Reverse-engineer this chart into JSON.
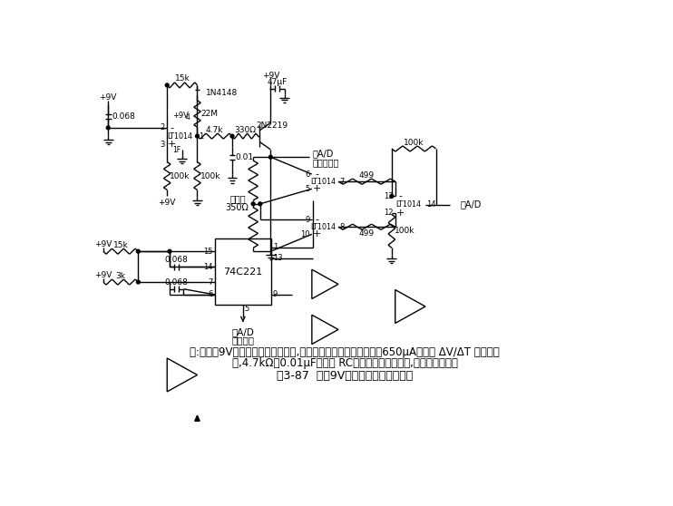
{
  "title": "图3-87  装有9V电池的应变计调节电路",
  "note_line1": "注:电路为9V电池应变计信号调节计,采样电路给出低平均工作电流650μA。由于 ΔV/ΔT 高阶跃变",
  "note_line2": "化,4.7kΩ和0.01μF构成的 RC网络用于保护应变桥,防止长期漂移。",
  "bg_color": "#ffffff",
  "line_color": "#000000"
}
